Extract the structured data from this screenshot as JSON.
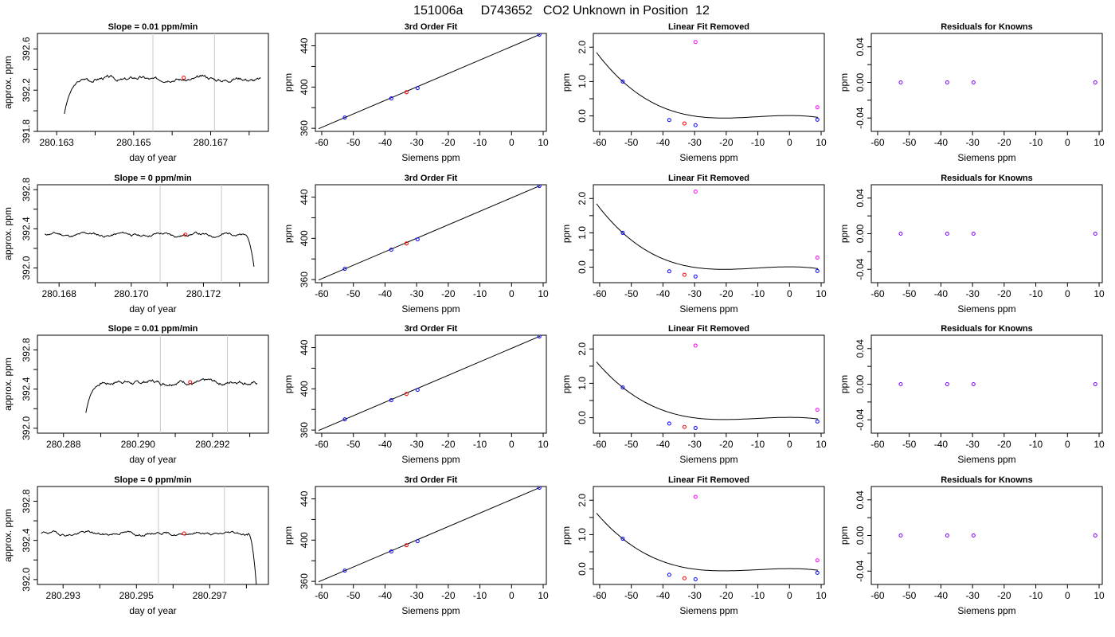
{
  "page": {
    "title": "151006a     D743652   CO2 Unknown in Position  12"
  },
  "colors": {
    "axis": "#000000",
    "line": "#000000",
    "vline": "#c8c8c8",
    "known_point": "#0000ff",
    "unknown_point": "#ff0000",
    "extra_point": "#ff00ff",
    "residual_point": "#7a00ff"
  },
  "common": {
    "x_ticks": [
      -60,
      -50,
      -40,
      -30,
      -20,
      -10,
      0,
      10
    ],
    "x_tick_labels": [
      "-60",
      "-50",
      "-40",
      "-30",
      "-20",
      "-10",
      "0",
      "10"
    ],
    "xlabel": "Siemens ppm",
    "xlim": [
      -62,
      11
    ],
    "knowns_x": [
      -52.7,
      -38.0,
      -29.7,
      8.8
    ],
    "unknown_x": -33.2,
    "extra_x": [
      -29.7,
      8.8
    ],
    "fit_xlim": [
      -61,
      9
    ],
    "fit_ylabel": "ppm",
    "fit_title": "3rd Order Fit",
    "fit_ylim": [
      357,
      452
    ],
    "fit_y_ticks": [
      360,
      400,
      440
    ],
    "fit_y_tick_labels": [
      "360",
      "400",
      "440"
    ],
    "fit_y_minor_ticks": [
      380,
      420
    ],
    "lin_title": "Linear Fit Removed",
    "lin_ylabel": "ppm",
    "lin_ylim": [
      -0.45,
      2.4
    ],
    "lin_y_ticks": [
      0.0,
      1.0,
      2.0
    ],
    "lin_y_tick_labels": [
      "0.0",
      "1.0",
      "2.0"
    ],
    "lin_y_minor_ticks": [
      0.5,
      1.5
    ],
    "res_title": "Residuals for Knowns",
    "res_ylabel": "ppm",
    "res_ylim": [
      -0.055,
      0.055
    ],
    "res_y_ticks": [
      -0.04,
      0.0,
      0.04
    ],
    "res_y_tick_labels": [
      "-0.04",
      "0.00",
      "0.04"
    ],
    "res_y_minor_ticks": [
      -0.02,
      0.02
    ]
  },
  "chart_data": [
    {
      "row": 0,
      "type": "line",
      "title": "Slope =  0.01  ppm/min",
      "xlabel": "day of year",
      "ylabel": "approx. ppm",
      "xlim": [
        280.1625,
        280.1685
      ],
      "ylim": [
        391.8,
        392.75
      ],
      "x_ticks": [
        280.163,
        280.165,
        280.167
      ],
      "x_tick_labels": [
        "280.163",
        "280.165",
        "280.167"
      ],
      "x_minor_ticks": [
        280.164,
        280.166,
        280.168
      ],
      "y_ticks": [
        391.8,
        392.2,
        392.6
      ],
      "y_tick_labels": [
        "391.8",
        "392.2",
        "392.6"
      ],
      "y_minor_ticks": [
        392.0,
        392.4
      ],
      "vlines": [
        280.1655,
        280.1671
      ],
      "trace_start": 280.1632,
      "trace_end": 280.1683,
      "rise_start": 280.1631,
      "rise_end": 280.1638,
      "plateau": 392.31,
      "wiggle": 0.022,
      "seed": 3,
      "marker_x": 280.1663,
      "marker_y": 392.32
    },
    {
      "row": 0,
      "type": "line",
      "title": "3rd Order Fit",
      "fit_line": true,
      "known_y": [
        370.4,
        389.0,
        399.0,
        450.8
      ],
      "unknown_y": 395.0
    },
    {
      "row": 0,
      "type": "line",
      "title": "Linear Fit Removed",
      "poly": [
        0.004,
        -0.000175,
        -5.62e-06
      ],
      "known_y": [
        1.0,
        -0.12,
        -0.27,
        -0.11
      ],
      "unknown_y": -0.22,
      "extra_y": [
        2.15,
        0.25
      ]
    },
    {
      "row": 0,
      "type": "scatter",
      "title": "Residuals for Knowns",
      "known_y": [
        0.0,
        0.0,
        0.0,
        0.0
      ]
    },
    {
      "row": 1,
      "type": "line",
      "title": "Slope =  0  ppm/min",
      "xlabel": "day of year",
      "ylabel": "approx. ppm",
      "xlim": [
        280.1674,
        280.1738
      ],
      "ylim": [
        391.85,
        392.85
      ],
      "x_ticks": [
        280.168,
        280.17,
        280.172
      ],
      "x_tick_labels": [
        "280.168",
        "280.170",
        "280.172"
      ],
      "x_minor_ticks": [
        280.169,
        280.171,
        280.173
      ],
      "y_ticks": [
        392.0,
        392.4,
        392.8
      ],
      "y_tick_labels": [
        "392.0",
        "392.4",
        "392.8"
      ],
      "y_minor_ticks": [
        392.2,
        392.6
      ],
      "vlines": [
        280.1708,
        280.1725
      ],
      "trace_start": 280.1676,
      "trace_end": 280.1734,
      "fall_start": 280.17315,
      "fall_end": 280.1735,
      "plateau": 392.34,
      "wiggle": 0.018,
      "seed": 11,
      "marker_x": 280.1715,
      "marker_y": 392.34
    },
    {
      "row": 1,
      "type": "line",
      "title": "3rd Order Fit",
      "fit_line": true,
      "known_y": [
        370.4,
        389.0,
        399.0,
        450.8
      ],
      "unknown_y": 395.0
    },
    {
      "row": 1,
      "type": "line",
      "title": "Linear Fit Removed",
      "poly": [
        0.004,
        -0.000175,
        -5.62e-06
      ],
      "known_y": [
        1.0,
        -0.12,
        -0.27,
        -0.11
      ],
      "unknown_y": -0.22,
      "extra_y": [
        2.2,
        0.28
      ]
    },
    {
      "row": 1,
      "type": "scatter",
      "title": "Residuals for Knowns",
      "known_y": [
        0.0,
        0.0,
        0.0,
        0.0
      ]
    },
    {
      "row": 2,
      "type": "line",
      "title": "Slope =  0.01  ppm/min",
      "xlabel": "day of year",
      "ylabel": "approx. ppm",
      "xlim": [
        280.2873,
        280.2935
      ],
      "ylim": [
        391.95,
        392.95
      ],
      "x_ticks": [
        280.288,
        280.29,
        280.292
      ],
      "x_tick_labels": [
        "280.288",
        "280.290",
        "280.292"
      ],
      "x_minor_ticks": [
        280.289,
        280.291,
        280.293
      ],
      "y_ticks": [
        392.0,
        392.4,
        392.8
      ],
      "y_tick_labels": [
        "392.0",
        "392.4",
        "392.8"
      ],
      "y_minor_ticks": [
        392.2,
        392.6
      ],
      "vlines": [
        280.2906,
        280.2924
      ],
      "trace_start": 280.2886,
      "trace_end": 280.2932,
      "rise_start": 280.2885,
      "rise_end": 280.2891,
      "plateau": 392.47,
      "wiggle": 0.022,
      "seed": 7,
      "marker_x": 280.2914,
      "marker_y": 392.47
    },
    {
      "row": 2,
      "type": "line",
      "title": "3rd Order Fit",
      "fit_line": true,
      "known_y": [
        370.4,
        389.0,
        399.0,
        450.8
      ],
      "unknown_y": 395.0
    },
    {
      "row": 2,
      "type": "line",
      "title": "Linear Fit Removed",
      "poly": [
        0.004,
        -0.000175,
        -5.62e-06
      ],
      "known_y": [
        0.88,
        -0.17,
        -0.3,
        -0.11
      ],
      "unknown_y": -0.27,
      "extra_y": [
        2.1,
        0.23
      ]
    },
    {
      "row": 2,
      "type": "scatter",
      "title": "Residuals for Knowns",
      "known_y": [
        0.0,
        0.0,
        0.0,
        0.0
      ]
    },
    {
      "row": 3,
      "type": "line",
      "title": "Slope =  0  ppm/min",
      "xlabel": "day of year",
      "ylabel": "approx. ppm",
      "xlim": [
        280.2923,
        280.2986
      ],
      "ylim": [
        391.95,
        392.95
      ],
      "x_ticks": [
        280.293,
        280.295,
        280.297
      ],
      "x_tick_labels": [
        "280.293",
        "280.295",
        "280.297"
      ],
      "x_minor_ticks": [
        280.294,
        280.296,
        280.298
      ],
      "y_ticks": [
        392.0,
        392.4,
        392.8
      ],
      "y_tick_labels": [
        "392.0",
        "392.4",
        "392.8"
      ],
      "y_minor_ticks": [
        392.2,
        392.6
      ],
      "vlines": [
        280.2956,
        280.2974
      ],
      "trace_start": 280.2924,
      "trace_end": 280.2983,
      "fall_start": 280.29805,
      "fall_end": 280.2983,
      "plateau": 392.47,
      "wiggle": 0.018,
      "seed": 19,
      "marker_x": 280.2963,
      "marker_y": 392.47
    },
    {
      "row": 3,
      "type": "line",
      "title": "3rd Order Fit",
      "fit_line": true,
      "known_y": [
        370.4,
        389.0,
        399.0,
        450.8
      ],
      "unknown_y": 395.0
    },
    {
      "row": 3,
      "type": "line",
      "title": "Linear Fit Removed",
      "poly": [
        0.004,
        -0.000175,
        -5.62e-06
      ],
      "known_y": [
        0.88,
        -0.17,
        -0.3,
        -0.11
      ],
      "unknown_y": -0.27,
      "extra_y": [
        2.1,
        0.25
      ]
    },
    {
      "row": 3,
      "type": "scatter",
      "title": "Residuals for Knowns",
      "known_y": [
        0.0,
        0.0,
        0.0,
        0.0
      ]
    }
  ]
}
